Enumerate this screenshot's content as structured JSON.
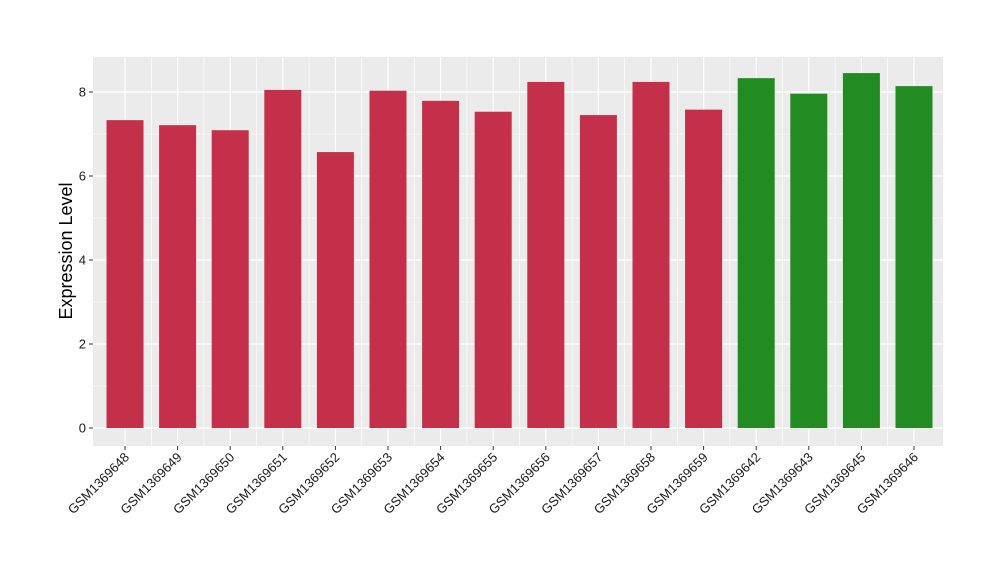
{
  "chart_data": {
    "type": "bar",
    "title": "",
    "xlabel": "",
    "ylabel": "Expression Level",
    "ylim": [
      0,
      8.85
    ],
    "yticks": [
      0,
      2,
      4,
      6,
      8
    ],
    "grid": true,
    "legend": "none",
    "colors": {
      "group_a": "#c4304a",
      "group_b": "#228b22",
      "panel_bg": "#ebebeb",
      "grid": "#ffffff"
    },
    "categories": [
      "GSM1369648",
      "GSM1369649",
      "GSM1369650",
      "GSM1369651",
      "GSM1369652",
      "GSM1369653",
      "GSM1369654",
      "GSM1369655",
      "GSM1369656",
      "GSM1369657",
      "GSM1369658",
      "GSM1369659",
      "GSM1369642",
      "GSM1369643",
      "GSM1369645",
      "GSM1369646"
    ],
    "values": [
      7.33,
      7.21,
      7.09,
      8.05,
      6.57,
      8.03,
      7.79,
      7.53,
      8.24,
      7.45,
      8.24,
      7.58,
      8.33,
      7.96,
      8.45,
      8.14
    ],
    "groups": [
      "a",
      "a",
      "a",
      "a",
      "a",
      "a",
      "a",
      "a",
      "a",
      "a",
      "a",
      "a",
      "b",
      "b",
      "b",
      "b"
    ]
  }
}
